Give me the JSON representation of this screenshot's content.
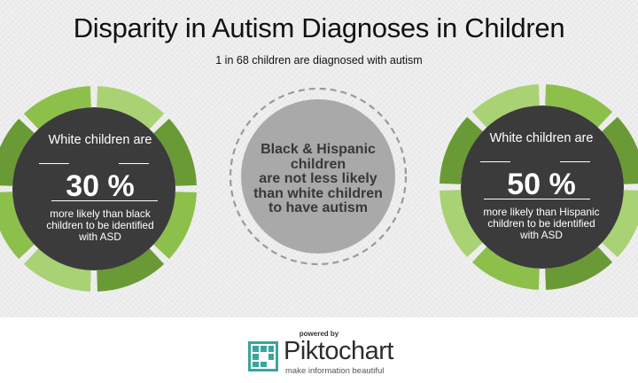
{
  "header": {
    "title": "Disparity in Autism Diagnoses in Children",
    "subtitle": "1 in 68 children are diagnosed with autism"
  },
  "left_stat": {
    "lead": "White children are",
    "value": "30 %",
    "desc_lines": [
      "more likely than black",
      "children to be identified",
      "with ASD"
    ]
  },
  "center_stat": {
    "lines": [
      "Black & Hispanic",
      "children",
      "are not less likely",
      "than white children",
      "to have autism"
    ]
  },
  "right_stat": {
    "lead": "White children are",
    "value": "50 %",
    "desc_lines": [
      "more likely than Hispanic",
      "children to be identified",
      "with ASD"
    ]
  },
  "footer": {
    "powered_by": "powered by",
    "brand": "Piktochart",
    "tagline": "make information beautiful"
  },
  "colors": {
    "ring_light": "#8dc04b",
    "ring_dark": "#6a9a35",
    "ring_pale": "#a9d274",
    "inner_disc": "#3b3b3b",
    "center_disc": "#a9a9a9",
    "logo_teal": "#3aa59c"
  }
}
